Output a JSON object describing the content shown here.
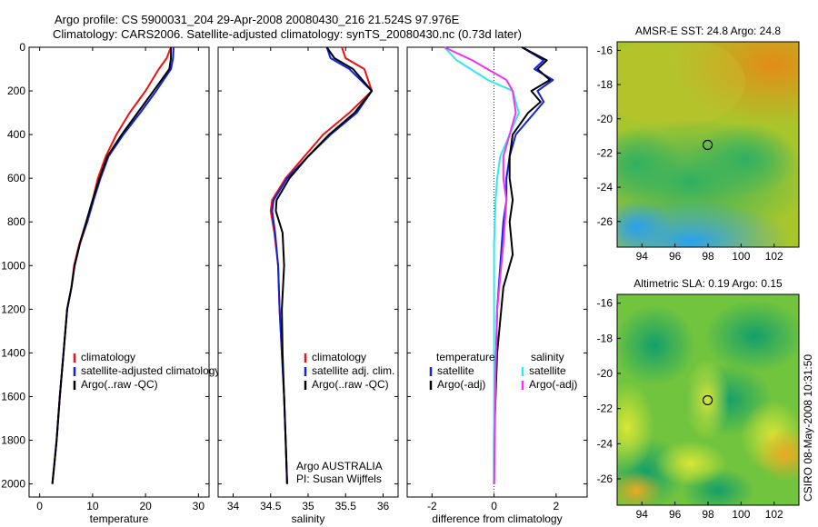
{
  "header": {
    "title_line1": "Argo profile: CS 5900031_204 29-Apr-2008 20080430_216 21.524S 97.976E",
    "title_line2": "Climatology: CARS2006. Satellite-adjusted climatology: synTS_20080430.nc (0.73d later)"
  },
  "side_label": "CSIRO 08-May-2008 10:31:50",
  "colors": {
    "climatology": "#ee1111",
    "satellite": "#1122dd",
    "argo": "#000000",
    "sal_satellite": "#33e6ee",
    "sal_argo": "#ee33ee"
  },
  "chart_data": [
    {
      "type": "line",
      "name": "temperature-panel",
      "xlabel": "temperature",
      "ylabel": "",
      "xlim": [
        -2,
        32
      ],
      "ylim": [
        2060,
        0
      ],
      "xticks": [
        0,
        10,
        20,
        30
      ],
      "yticks": [
        0,
        200,
        400,
        600,
        800,
        1000,
        1200,
        1400,
        1600,
        1800,
        2000
      ],
      "legend": [
        "climatology",
        "satellite-adjusted climatology",
        "Argo(..raw -QC)"
      ],
      "legend_position": "bottom-right",
      "series": [
        {
          "name": "climatology",
          "color": "#ee1111",
          "x": [
            24.8,
            24.0,
            22.5,
            20.0,
            17.0,
            14.5,
            12.5,
            11.0,
            10.0,
            8.8,
            7.5,
            6.5,
            6.0,
            5.2,
            4.5,
            3.8,
            3.2,
            2.8,
            2.4
          ],
          "y": [
            0,
            50,
            100,
            200,
            300,
            400,
            500,
            600,
            700,
            800,
            900,
            1000,
            1100,
            1200,
            1400,
            1600,
            1800,
            1900,
            2000
          ]
        },
        {
          "name": "satellite",
          "color": "#1122dd",
          "x": [
            25.3,
            25.2,
            24.8,
            22.0,
            19.0,
            15.8,
            13.0,
            11.5,
            10.2,
            9.0,
            7.6,
            6.6,
            6.0,
            5.2,
            4.5,
            3.8,
            3.2,
            2.8,
            2.4
          ],
          "y": [
            0,
            50,
            100,
            200,
            300,
            400,
            500,
            600,
            700,
            800,
            900,
            1000,
            1100,
            1200,
            1400,
            1600,
            1800,
            1900,
            2000
          ]
        },
        {
          "name": "argo",
          "color": "#000000",
          "x": [
            24.8,
            24.8,
            24.5,
            21.5,
            18.5,
            15.5,
            12.8,
            11.3,
            10.0,
            8.8,
            7.6,
            6.6,
            6.0,
            5.2,
            4.5,
            3.8,
            3.2,
            2.8,
            2.4
          ],
          "y": [
            0,
            50,
            100,
            200,
            300,
            400,
            500,
            600,
            700,
            800,
            900,
            1000,
            1100,
            1200,
            1400,
            1600,
            1800,
            1900,
            2000
          ]
        }
      ]
    },
    {
      "type": "line",
      "name": "salinity-panel",
      "xlabel": "salinity",
      "xlim": [
        33.8,
        36.2
      ],
      "ylim": [
        2060,
        0
      ],
      "xticks": [
        34,
        34.5,
        35,
        35.5,
        36
      ],
      "legend": [
        "climatology",
        "satellite adj. clim.",
        "Argo(..raw -QC)"
      ],
      "legend_position": "bottom-right",
      "annotation": [
        "Argo AUSTRALIA",
        "PI: Susan Wijffels"
      ],
      "series": [
        {
          "name": "climatology",
          "color": "#ee1111",
          "x": [
            35.45,
            35.5,
            35.75,
            35.85,
            35.55,
            35.2,
            34.95,
            34.7,
            34.52,
            34.5,
            34.55,
            34.6,
            34.62,
            34.65,
            34.68,
            34.7,
            34.72
          ],
          "y": [
            0,
            50,
            100,
            200,
            300,
            400,
            500,
            600,
            700,
            750,
            850,
            1000,
            1200,
            1400,
            1600,
            1800,
            2000
          ]
        },
        {
          "name": "satellite",
          "color": "#1122dd",
          "x": [
            35.25,
            35.3,
            35.55,
            35.85,
            35.65,
            35.3,
            35.0,
            34.72,
            34.54,
            34.52,
            34.56,
            34.6,
            34.62,
            34.65,
            34.68,
            34.7,
            34.72
          ],
          "y": [
            0,
            50,
            100,
            200,
            300,
            400,
            500,
            600,
            700,
            750,
            850,
            1000,
            1200,
            1400,
            1600,
            1800,
            2000
          ]
        },
        {
          "name": "argo",
          "color": "#000000",
          "x": [
            35.25,
            35.35,
            35.6,
            35.85,
            35.62,
            35.28,
            35.0,
            34.75,
            34.58,
            34.57,
            34.66,
            34.68,
            34.65,
            34.66,
            34.68,
            34.7,
            34.72
          ],
          "y": [
            0,
            50,
            100,
            200,
            300,
            400,
            500,
            600,
            700,
            750,
            850,
            1000,
            1200,
            1400,
            1600,
            1800,
            2000
          ]
        }
      ]
    },
    {
      "type": "line",
      "name": "difference-panel",
      "xlabel": "difference from climatology",
      "xlim": [
        -2.8,
        3.0
      ],
      "ylim": [
        2060,
        0
      ],
      "xticks": [
        -2,
        0,
        2
      ],
      "legend": [
        "temperature",
        "satellite",
        "Argo(-adj)",
        "salinity",
        "satellite",
        "Argo(-adj)"
      ],
      "legend_position": "bottom-center",
      "series": [
        {
          "name": "temperature satellite",
          "color": "#1122dd",
          "x": [
            0.9,
            1.6,
            1.3,
            1.9,
            1.4,
            1.6,
            1.3,
            0.7,
            0.5,
            0.4,
            0.4,
            0.3,
            0.2,
            0.1,
            0.05,
            0.0,
            0.0
          ],
          "y": [
            0,
            60,
            100,
            150,
            200,
            250,
            300,
            400,
            500,
            600,
            700,
            800,
            1000,
            1200,
            1500,
            1800,
            2000
          ]
        },
        {
          "name": "temperature argo",
          "color": "#000000",
          "x": [
            0.9,
            1.7,
            1.4,
            1.8,
            1.2,
            1.5,
            1.1,
            0.6,
            0.5,
            0.5,
            0.6,
            0.5,
            0.6,
            0.3,
            0.1,
            0.0,
            0.0
          ],
          "y": [
            0,
            60,
            100,
            150,
            200,
            250,
            300,
            400,
            500,
            600,
            700,
            800,
            950,
            1100,
            1400,
            1800,
            2000
          ]
        },
        {
          "name": "salinity satellite",
          "color": "#33e6ee",
          "x": [
            -1.6,
            -1.2,
            -0.2,
            0.6,
            0.8,
            0.5,
            0.2,
            0.1,
            0.05,
            0.0,
            0.0,
            0.0,
            0.0,
            0.0
          ],
          "y": [
            0,
            60,
            150,
            200,
            300,
            400,
            500,
            600,
            700,
            900,
            1200,
            1500,
            1800,
            2000
          ]
        },
        {
          "name": "salinity argo",
          "color": "#ee33ee",
          "x": [
            -1.6,
            -0.7,
            0.4,
            0.6,
            0.7,
            0.5,
            0.3,
            0.3,
            0.4,
            0.3,
            0.1,
            0.05,
            0.0
          ],
          "y": [
            0,
            60,
            150,
            200,
            300,
            400,
            500,
            600,
            700,
            900,
            1200,
            1500,
            2000
          ]
        }
      ]
    },
    {
      "type": "heatmap",
      "name": "sst-map",
      "title": "AMSR-E SST: 24.8 Argo: 24.8",
      "xlim": [
        92.5,
        103.5
      ],
      "ylim": [
        -27.5,
        -15.5
      ],
      "xticks": [
        94,
        96,
        98,
        100,
        102
      ],
      "yticks": [
        -16,
        -18,
        -20,
        -22,
        -24,
        -26
      ],
      "marker": {
        "lon": 97.976,
        "lat": -21.524
      }
    },
    {
      "type": "heatmap",
      "name": "sla-map",
      "title": "Altimetric SLA: 0.19 Argo: 0.15",
      "xlim": [
        92.5,
        103.5
      ],
      "ylim": [
        -27.5,
        -15.5
      ],
      "xticks": [
        94,
        96,
        98,
        100,
        102
      ],
      "yticks": [
        -16,
        -18,
        -20,
        -22,
        -24,
        -26
      ],
      "marker": {
        "lon": 97.976,
        "lat": -21.524
      }
    }
  ]
}
